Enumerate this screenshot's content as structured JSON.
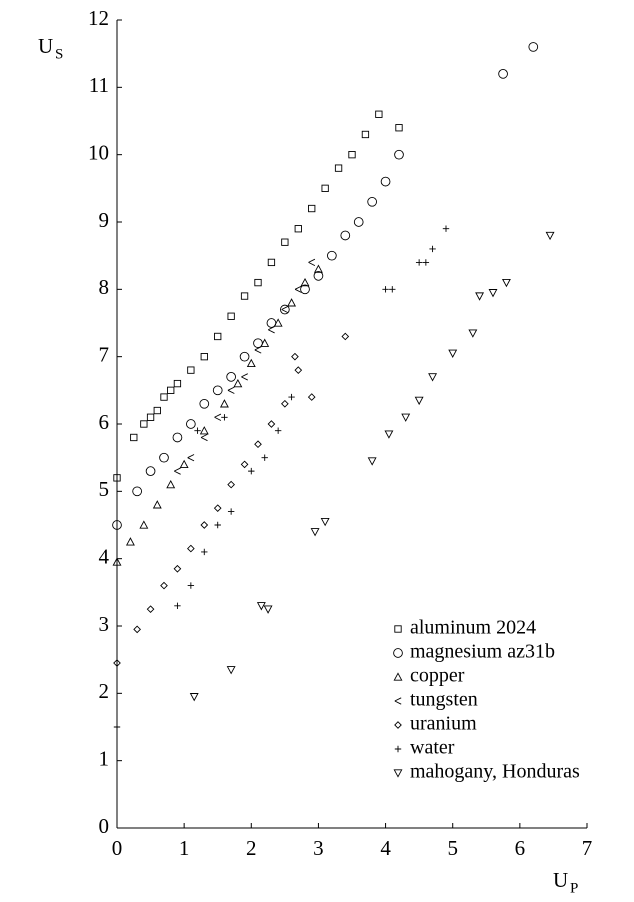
{
  "chart_data": {
    "type": "scatter",
    "x_label": "U",
    "x_label_sub": "P",
    "y_label": "U",
    "y_label_sub": "S",
    "xlim": [
      0,
      7
    ],
    "ylim": [
      0,
      12
    ],
    "xticks": [
      0,
      1,
      2,
      3,
      4,
      5,
      6,
      7
    ],
    "yticks": [
      0,
      1,
      2,
      3,
      4,
      5,
      6,
      7,
      8,
      9,
      10,
      11,
      12
    ],
    "legend": "lower right",
    "series": [
      {
        "name": "aluminum 2024",
        "marker": "square",
        "color": "#000000",
        "x": [
          0,
          0.25,
          0.4,
          0.5,
          0.6,
          0.7,
          0.8,
          0.9,
          1.1,
          1.3,
          1.5,
          1.7,
          1.9,
          2.1,
          2.3,
          2.5,
          2.7,
          2.9,
          3.1,
          3.3,
          3.5,
          3.7,
          3.9,
          4.2
        ],
        "values": [
          5.2,
          5.8,
          6.0,
          6.1,
          6.2,
          6.4,
          6.5,
          6.6,
          6.8,
          7.0,
          7.3,
          7.6,
          7.9,
          8.1,
          8.4,
          8.7,
          8.9,
          9.2,
          9.5,
          9.8,
          10.0,
          10.3,
          10.6,
          10.4
        ]
      },
      {
        "name": "magnesium az31b",
        "marker": "circle",
        "color": "#000000",
        "x": [
          0,
          0.3,
          0.5,
          0.7,
          0.9,
          1.1,
          1.3,
          1.5,
          1.7,
          1.9,
          2.1,
          2.3,
          2.5,
          2.8,
          3.0,
          3.2,
          3.4,
          3.6,
          3.8,
          4.0,
          4.2,
          5.75,
          6.2
        ],
        "values": [
          4.5,
          5.0,
          5.3,
          5.5,
          5.8,
          6.0,
          6.3,
          6.5,
          6.7,
          7.0,
          7.2,
          7.5,
          7.7,
          8.0,
          8.2,
          8.5,
          8.8,
          9.0,
          9.3,
          9.6,
          10.0,
          11.2,
          11.6
        ]
      },
      {
        "name": "copper",
        "marker": "triangle-up",
        "color": "#000000",
        "x": [
          0,
          0.2,
          0.4,
          0.6,
          0.8,
          1.0,
          1.3,
          1.6,
          1.8,
          2.0,
          2.2,
          2.4,
          2.6,
          2.8,
          3.0
        ],
        "values": [
          3.95,
          4.25,
          4.5,
          4.8,
          5.1,
          5.4,
          5.9,
          6.3,
          6.6,
          6.9,
          7.2,
          7.5,
          7.8,
          8.1,
          8.3
        ]
      },
      {
        "name": "tungsten",
        "marker": "triangle-left",
        "color": "#000000",
        "x": [
          0.9,
          1.1,
          1.3,
          1.5,
          1.7,
          1.9,
          2.1,
          2.3,
          2.5,
          2.7,
          2.9
        ],
        "values": [
          5.3,
          5.5,
          5.8,
          6.1,
          6.5,
          6.7,
          7.1,
          7.4,
          7.7,
          8.0,
          8.4
        ]
      },
      {
        "name": "uranium",
        "marker": "diamond",
        "color": "#000000",
        "x": [
          0,
          0.3,
          0.5,
          0.7,
          0.9,
          1.1,
          1.3,
          1.5,
          1.7,
          1.9,
          2.1,
          2.3,
          2.5,
          2.7,
          2.9,
          2.65,
          3.4
        ],
        "values": [
          2.45,
          2.95,
          3.25,
          3.6,
          3.85,
          4.15,
          4.5,
          4.75,
          5.1,
          5.4,
          5.7,
          6.0,
          6.3,
          6.8,
          6.4,
          7.0,
          7.3
        ]
      },
      {
        "name": "water",
        "marker": "plus",
        "color": "#000000",
        "x": [
          0,
          0.9,
          1.1,
          1.3,
          1.5,
          1.7,
          2.0,
          2.2,
          2.4,
          2.6,
          1.2,
          1.6,
          4.0,
          4.1,
          4.5,
          4.6,
          4.7,
          4.9
        ],
        "values": [
          1.5,
          3.3,
          3.6,
          4.1,
          4.5,
          4.7,
          5.3,
          5.5,
          5.9,
          6.4,
          5.9,
          6.1,
          8.0,
          8.0,
          8.4,
          8.4,
          8.6,
          8.9
        ]
      },
      {
        "name": "mahogany, Honduras",
        "marker": "triangle-down",
        "color": "#000000",
        "x": [
          1.15,
          1.7,
          2.15,
          2.25,
          2.95,
          3.1,
          3.8,
          4.05,
          4.3,
          4.5,
          4.7,
          5.0,
          5.3,
          5.4,
          5.6,
          5.8,
          6.45
        ],
        "values": [
          1.95,
          2.35,
          3.3,
          3.25,
          4.4,
          4.55,
          5.45,
          5.85,
          6.1,
          6.35,
          6.7,
          7.05,
          7.35,
          7.9,
          7.95,
          8.1,
          8.8
        ]
      }
    ]
  }
}
